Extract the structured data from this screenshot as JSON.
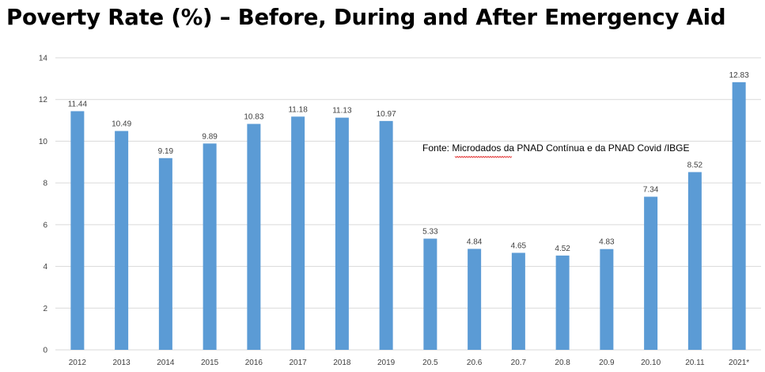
{
  "chart_data": {
    "type": "bar",
    "title": "Poverty Rate (%) – Before, During and After Emergency Aid",
    "categories": [
      "2012",
      "2013",
      "2014",
      "2015",
      "2016",
      "2017",
      "2018",
      "2019",
      "20.5",
      "20.6",
      "20.7",
      "20.8",
      "20.9",
      "20.10",
      "20.11",
      "2021*"
    ],
    "values": [
      11.44,
      10.49,
      9.19,
      9.89,
      10.83,
      11.18,
      11.13,
      10.97,
      5.33,
      4.84,
      4.65,
      4.52,
      4.83,
      7.34,
      8.52,
      12.83
    ],
    "value_labels": [
      "11.44",
      "10.49",
      "9.19",
      "9.89",
      "10.83",
      "11.18",
      "11.13",
      "10.97",
      "5.33",
      "4.84",
      "4.65",
      "4.52",
      "4.83",
      "7.34",
      "8.52",
      "12.83"
    ],
    "ylim": [
      0,
      14
    ],
    "yticks": [
      0,
      2,
      4,
      6,
      8,
      10,
      12,
      14
    ],
    "xlabel": "",
    "ylabel": "",
    "grid": true,
    "legend": "none",
    "bar_color": "#5b9bd5",
    "grid_color": "#d9d9d9",
    "annotation": "Fonte: Microdados da PNAD Contínua e da PNAD Covid /IBGE"
  }
}
